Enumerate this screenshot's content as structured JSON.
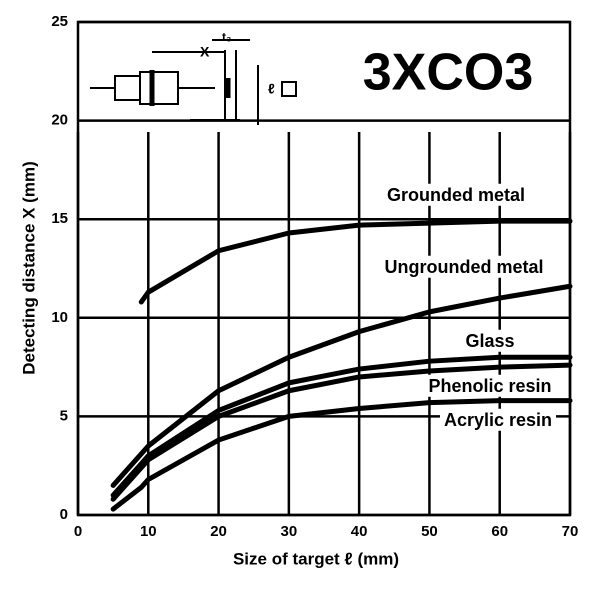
{
  "chart_data": {
    "type": "line",
    "title": "3XCO3",
    "x_label": "Size of target ℓ (mm)",
    "y_label": "Detecting distance X (mm)",
    "x": [
      5,
      9,
      10,
      20,
      30,
      40,
      50,
      60,
      70
    ],
    "series": [
      {
        "name": "Grounded metal",
        "color": "#000000",
        "values": [
          null,
          10.8,
          11.3,
          13.4,
          14.3,
          14.7,
          14.8,
          14.9,
          14.9
        ]
      },
      {
        "name": "Ungrounded metal",
        "color": "#000000",
        "values": [
          1.5,
          3.1,
          3.5,
          6.3,
          8.0,
          9.3,
          10.3,
          11.0,
          11.6
        ]
      },
      {
        "name": "Glass",
        "color": "#000000",
        "values": [
          1.0,
          2.6,
          3.0,
          5.3,
          6.7,
          7.4,
          7.8,
          8.0,
          8.0
        ]
      },
      {
        "name": "Phenolic resin",
        "color": "#000000",
        "values": [
          0.8,
          2.4,
          2.8,
          5.0,
          6.3,
          7.0,
          7.3,
          7.5,
          7.6
        ]
      },
      {
        "name": "Acrylic resin",
        "color": "#000000",
        "values": [
          0.3,
          1.4,
          1.8,
          3.8,
          5.0,
          5.4,
          5.7,
          5.8,
          5.8
        ]
      }
    ],
    "xlim": [
      0,
      70
    ],
    "xticks": [
      0,
      10,
      20,
      30,
      40,
      50,
      60,
      70
    ],
    "ylim": [
      0,
      25
    ],
    "yticks": [
      0,
      5,
      10,
      15,
      20,
      25
    ],
    "grid": true
  },
  "inset": {
    "labels": [
      "X",
      "t₃",
      "ℓ"
    ]
  }
}
